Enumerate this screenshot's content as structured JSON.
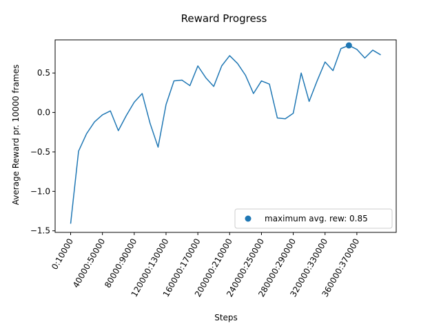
{
  "chart_data": {
    "type": "line",
    "title": "Reward Progress",
    "xlabel": "Steps",
    "ylabel": "Average Reward pr. 10000 frames",
    "ylim": [
      -1.52,
      0.92
    ],
    "yticks": [
      -1.5,
      -1.0,
      -0.5,
      0.0,
      0.5
    ],
    "ytick_labels": [
      "−1.5",
      "−1.0",
      "−0.5",
      "0.0",
      "0.5"
    ],
    "xticks": [
      0,
      4,
      8,
      12,
      16,
      20,
      24,
      28,
      32,
      36
    ],
    "xtick_labels": [
      "0:10000",
      "40000:50000",
      "80000:90000",
      "120000:130000",
      "160000:170000",
      "200000:210000",
      "240000:250000",
      "280000:290000",
      "320000:330000",
      "360000:370000"
    ],
    "grid": false,
    "legend_position": "bottom-right",
    "color": "#1f77b4",
    "series": [
      {
        "values": [
          -1.41,
          -0.49,
          -0.27,
          -0.12,
          -0.03,
          0.02,
          -0.23,
          -0.04,
          0.13,
          0.24,
          -0.14,
          -0.44,
          0.1,
          0.4,
          0.41,
          0.34,
          0.59,
          0.44,
          0.33,
          0.59,
          0.72,
          0.62,
          0.47,
          0.24,
          0.4,
          0.36,
          -0.07,
          -0.08,
          -0.01,
          0.5,
          0.14,
          0.4,
          0.64,
          0.53,
          0.81,
          0.85,
          0.8,
          0.69,
          0.79,
          0.73
        ]
      }
    ],
    "marker": {
      "index": 35,
      "value": 0.85,
      "label": "maximum avg. rew: 0.85"
    }
  }
}
